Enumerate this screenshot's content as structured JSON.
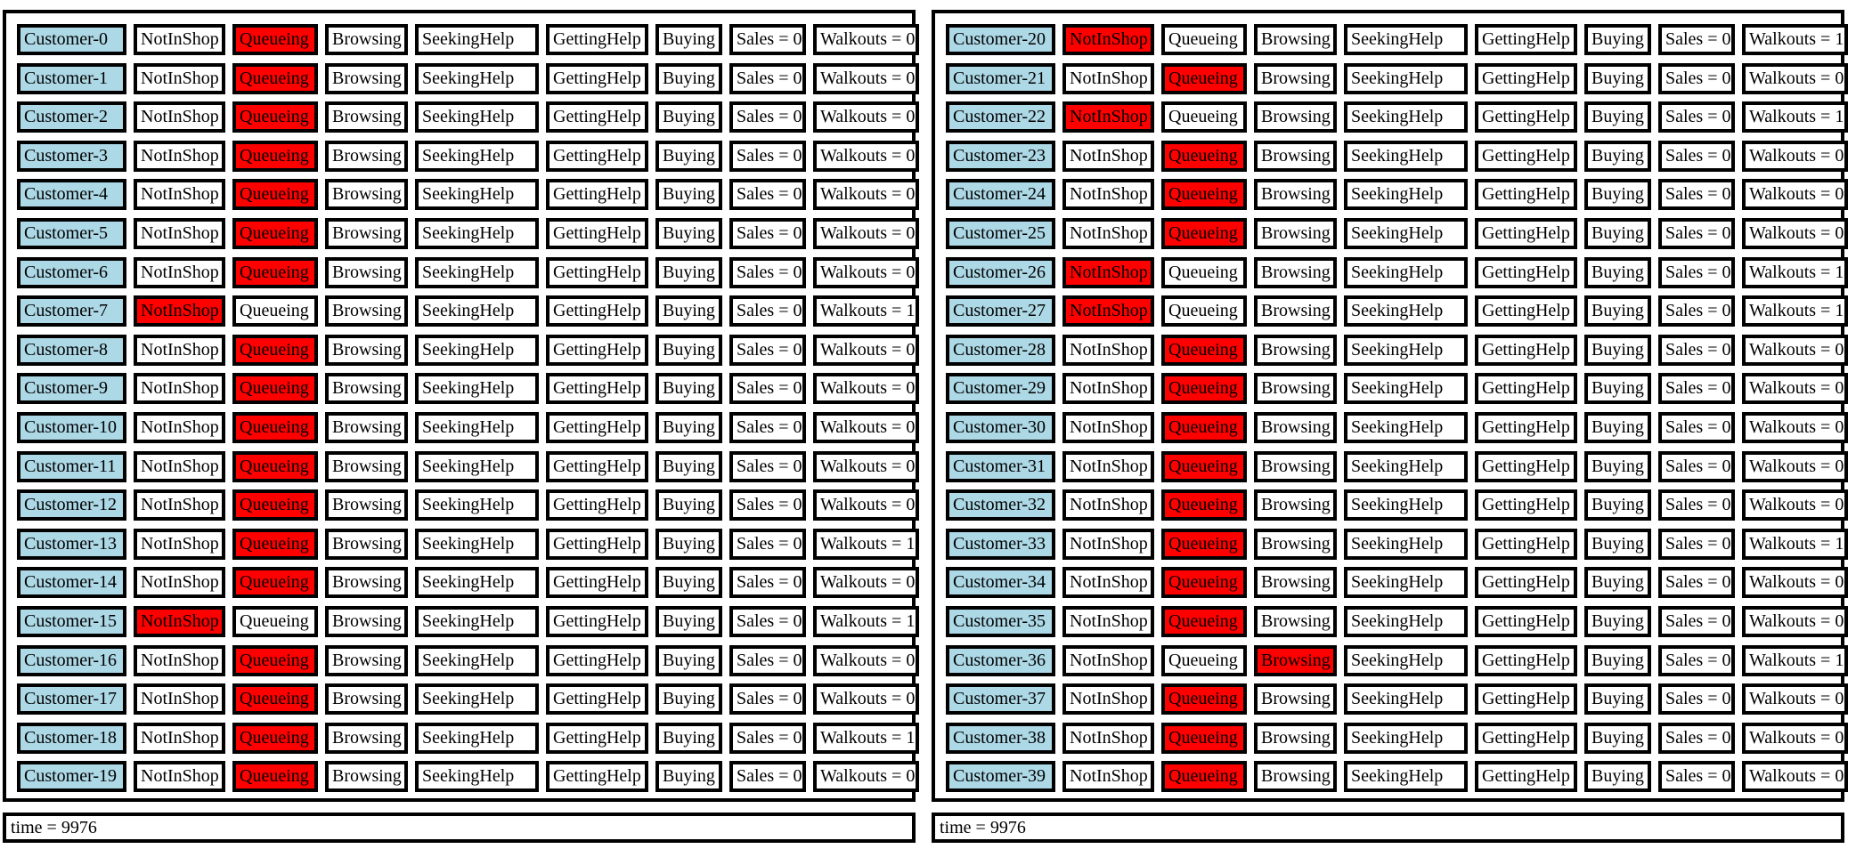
{
  "state_labels": [
    "NotInShop",
    "Queueing",
    "Browsing",
    "SeekingHelp",
    "GettingHelp",
    "Buying"
  ],
  "colors": {
    "name_bg": "#add8e6",
    "active_bg": "#ff0000",
    "border": "#000000"
  },
  "panels": [
    {
      "time_label": "time = 9976",
      "customers": [
        {
          "name": "Customer-0",
          "active": 1,
          "sales": "Sales = 0",
          "walkouts": "Walkouts = 0"
        },
        {
          "name": "Customer-1",
          "active": 1,
          "sales": "Sales = 0",
          "walkouts": "Walkouts = 0"
        },
        {
          "name": "Customer-2",
          "active": 1,
          "sales": "Sales = 0",
          "walkouts": "Walkouts = 0"
        },
        {
          "name": "Customer-3",
          "active": 1,
          "sales": "Sales = 0",
          "walkouts": "Walkouts = 0"
        },
        {
          "name": "Customer-4",
          "active": 1,
          "sales": "Sales = 0",
          "walkouts": "Walkouts = 0"
        },
        {
          "name": "Customer-5",
          "active": 1,
          "sales": "Sales = 0",
          "walkouts": "Walkouts = 0"
        },
        {
          "name": "Customer-6",
          "active": 1,
          "sales": "Sales = 0",
          "walkouts": "Walkouts = 0"
        },
        {
          "name": "Customer-7",
          "active": 0,
          "sales": "Sales = 0",
          "walkouts": "Walkouts = 1"
        },
        {
          "name": "Customer-8",
          "active": 1,
          "sales": "Sales = 0",
          "walkouts": "Walkouts = 0"
        },
        {
          "name": "Customer-9",
          "active": 1,
          "sales": "Sales = 0",
          "walkouts": "Walkouts = 0"
        },
        {
          "name": "Customer-10",
          "active": 1,
          "sales": "Sales = 0",
          "walkouts": "Walkouts = 0"
        },
        {
          "name": "Customer-11",
          "active": 1,
          "sales": "Sales = 0",
          "walkouts": "Walkouts = 0"
        },
        {
          "name": "Customer-12",
          "active": 1,
          "sales": "Sales = 0",
          "walkouts": "Walkouts = 0"
        },
        {
          "name": "Customer-13",
          "active": 1,
          "sales": "Sales = 0",
          "walkouts": "Walkouts = 1"
        },
        {
          "name": "Customer-14",
          "active": 1,
          "sales": "Sales = 0",
          "walkouts": "Walkouts = 0"
        },
        {
          "name": "Customer-15",
          "active": 0,
          "sales": "Sales = 0",
          "walkouts": "Walkouts = 1"
        },
        {
          "name": "Customer-16",
          "active": 1,
          "sales": "Sales = 0",
          "walkouts": "Walkouts = 0"
        },
        {
          "name": "Customer-17",
          "active": 1,
          "sales": "Sales = 0",
          "walkouts": "Walkouts = 0"
        },
        {
          "name": "Customer-18",
          "active": 1,
          "sales": "Sales = 0",
          "walkouts": "Walkouts = 1"
        },
        {
          "name": "Customer-19",
          "active": 1,
          "sales": "Sales = 0",
          "walkouts": "Walkouts = 0"
        }
      ]
    },
    {
      "time_label": "time = 9976",
      "customers": [
        {
          "name": "Customer-20",
          "active": 0,
          "sales": "Sales = 0",
          "walkouts": "Walkouts = 1"
        },
        {
          "name": "Customer-21",
          "active": 1,
          "sales": "Sales = 0",
          "walkouts": "Walkouts = 0"
        },
        {
          "name": "Customer-22",
          "active": 0,
          "sales": "Sales = 0",
          "walkouts": "Walkouts = 1"
        },
        {
          "name": "Customer-23",
          "active": 1,
          "sales": "Sales = 0",
          "walkouts": "Walkouts = 0"
        },
        {
          "name": "Customer-24",
          "active": 1,
          "sales": "Sales = 0",
          "walkouts": "Walkouts = 0"
        },
        {
          "name": "Customer-25",
          "active": 1,
          "sales": "Sales = 0",
          "walkouts": "Walkouts = 0"
        },
        {
          "name": "Customer-26",
          "active": 0,
          "sales": "Sales = 0",
          "walkouts": "Walkouts = 1"
        },
        {
          "name": "Customer-27",
          "active": 0,
          "sales": "Sales = 0",
          "walkouts": "Walkouts = 1"
        },
        {
          "name": "Customer-28",
          "active": 1,
          "sales": "Sales = 0",
          "walkouts": "Walkouts = 0"
        },
        {
          "name": "Customer-29",
          "active": 1,
          "sales": "Sales = 0",
          "walkouts": "Walkouts = 0"
        },
        {
          "name": "Customer-30",
          "active": 1,
          "sales": "Sales = 0",
          "walkouts": "Walkouts = 0"
        },
        {
          "name": "Customer-31",
          "active": 1,
          "sales": "Sales = 0",
          "walkouts": "Walkouts = 0"
        },
        {
          "name": "Customer-32",
          "active": 1,
          "sales": "Sales = 0",
          "walkouts": "Walkouts = 0"
        },
        {
          "name": "Customer-33",
          "active": 1,
          "sales": "Sales = 0",
          "walkouts": "Walkouts = 1"
        },
        {
          "name": "Customer-34",
          "active": 1,
          "sales": "Sales = 0",
          "walkouts": "Walkouts = 0"
        },
        {
          "name": "Customer-35",
          "active": 1,
          "sales": "Sales = 0",
          "walkouts": "Walkouts = 0"
        },
        {
          "name": "Customer-36",
          "active": 2,
          "sales": "Sales = 0",
          "walkouts": "Walkouts = 1"
        },
        {
          "name": "Customer-37",
          "active": 1,
          "sales": "Sales = 0",
          "walkouts": "Walkouts = 0"
        },
        {
          "name": "Customer-38",
          "active": 1,
          "sales": "Sales = 0",
          "walkouts": "Walkouts = 0"
        },
        {
          "name": "Customer-39",
          "active": 1,
          "sales": "Sales = 0",
          "walkouts": "Walkouts = 0"
        }
      ]
    }
  ]
}
